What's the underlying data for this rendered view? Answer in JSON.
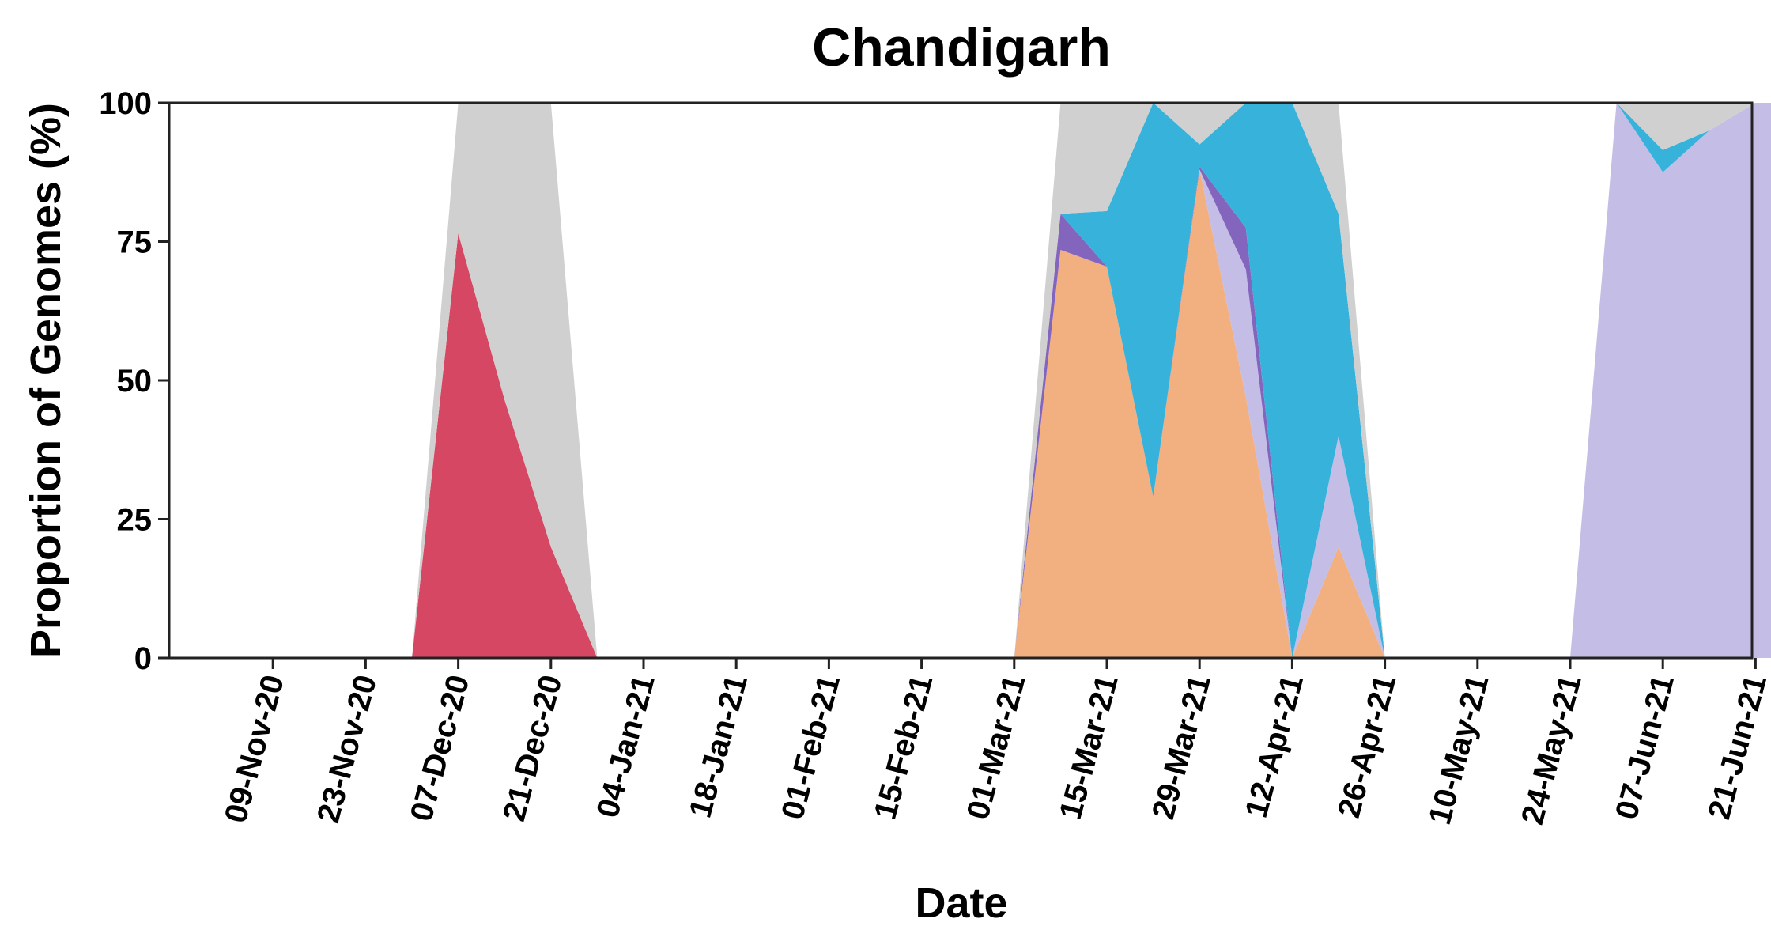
{
  "chart_data": {
    "type": "area",
    "stacked": true,
    "title": "Chandigarh",
    "xlabel": "Date",
    "ylabel": "Proportion of Genomes (%)",
    "ylim": [
      0,
      100
    ],
    "yticks": [
      0,
      25,
      50,
      75,
      100
    ],
    "grid": false,
    "legend": "none",
    "x_dates": [
      "26-Oct-20",
      "02-Nov-20",
      "09-Nov-20",
      "16-Nov-20",
      "23-Nov-20",
      "30-Nov-20",
      "07-Dec-20",
      "14-Dec-20",
      "21-Dec-20",
      "28-Dec-20",
      "04-Jan-21",
      "11-Jan-21",
      "18-Jan-21",
      "25-Jan-21",
      "01-Feb-21",
      "08-Feb-21",
      "15-Feb-21",
      "22-Feb-21",
      "01-Mar-21",
      "08-Mar-21",
      "15-Mar-21",
      "22-Mar-21",
      "29-Mar-21",
      "05-Apr-21",
      "12-Apr-21",
      "19-Apr-21",
      "26-Apr-21",
      "03-May-21",
      "10-May-21",
      "17-May-21",
      "24-May-21",
      "31-May-21",
      "07-Jun-21",
      "14-Jun-21",
      "21-Jun-21",
      "28-Jun-21"
    ],
    "x_tick_labels": [
      "09-Nov-20",
      "23-Nov-20",
      "07-Dec-20",
      "21-Dec-20",
      "04-Jan-21",
      "18-Jan-21",
      "01-Feb-21",
      "15-Feb-21",
      "01-Mar-21",
      "15-Mar-21",
      "29-Mar-21",
      "12-Apr-21",
      "26-Apr-21",
      "10-May-21",
      "24-May-21",
      "07-Jun-21",
      "21-Jun-21"
    ],
    "series": [
      {
        "color": "#d64763",
        "values": [
          0,
          0,
          0,
          0,
          0,
          0,
          76.5,
          46.5,
          20,
          0,
          0,
          0,
          0,
          0,
          0,
          0,
          0,
          0,
          0,
          0,
          0,
          0,
          0,
          0,
          0,
          0,
          0,
          0,
          0,
          0,
          0,
          0,
          0,
          0,
          0,
          0
        ]
      },
      {
        "color": "#f2b081",
        "values": [
          0,
          0,
          0,
          0,
          0,
          0,
          0,
          0,
          0,
          0,
          0,
          0,
          0,
          0,
          0,
          0,
          0,
          0,
          0,
          73.5,
          70.5,
          29,
          88,
          47,
          0,
          20,
          0,
          0,
          0,
          0,
          0,
          0,
          0,
          0,
          0,
          0
        ]
      },
      {
        "color": "#c4bde5",
        "values": [
          0,
          0,
          0,
          0,
          0,
          0,
          0,
          0,
          0,
          0,
          0,
          0,
          0,
          0,
          0,
          0,
          0,
          0,
          0,
          0,
          0,
          0,
          0,
          23,
          0,
          20,
          0,
          0,
          0,
          0,
          0,
          100,
          87.5,
          95,
          100,
          100
        ]
      },
      {
        "color": "#8465be",
        "values": [
          0,
          0,
          0,
          0,
          0,
          0,
          0,
          0,
          0,
          0,
          0,
          0,
          0,
          0,
          0,
          0,
          0,
          0,
          0,
          6.5,
          0,
          0,
          0.5,
          7.5,
          0,
          0,
          0,
          0,
          0,
          0,
          0,
          0,
          0,
          0,
          0,
          0
        ]
      },
      {
        "color": "#37b3db",
        "values": [
          0,
          0,
          0,
          0,
          0,
          0,
          0,
          0,
          0,
          0,
          0,
          0,
          0,
          0,
          0,
          0,
          0,
          0,
          0,
          0,
          10,
          71,
          4,
          22.5,
          100,
          40,
          0,
          0,
          0,
          0,
          0,
          0,
          4,
          0,
          0,
          0
        ]
      },
      {
        "color": "#d0d0d0",
        "values": [
          0,
          0,
          0,
          0,
          0,
          0,
          23.5,
          53.5,
          80,
          0,
          0,
          0,
          0,
          0,
          0,
          0,
          0,
          0,
          0,
          20,
          19.5,
          0,
          7.5,
          0,
          0,
          20,
          0,
          0,
          0,
          0,
          0,
          0,
          8.5,
          5,
          0,
          0
        ]
      }
    ]
  }
}
